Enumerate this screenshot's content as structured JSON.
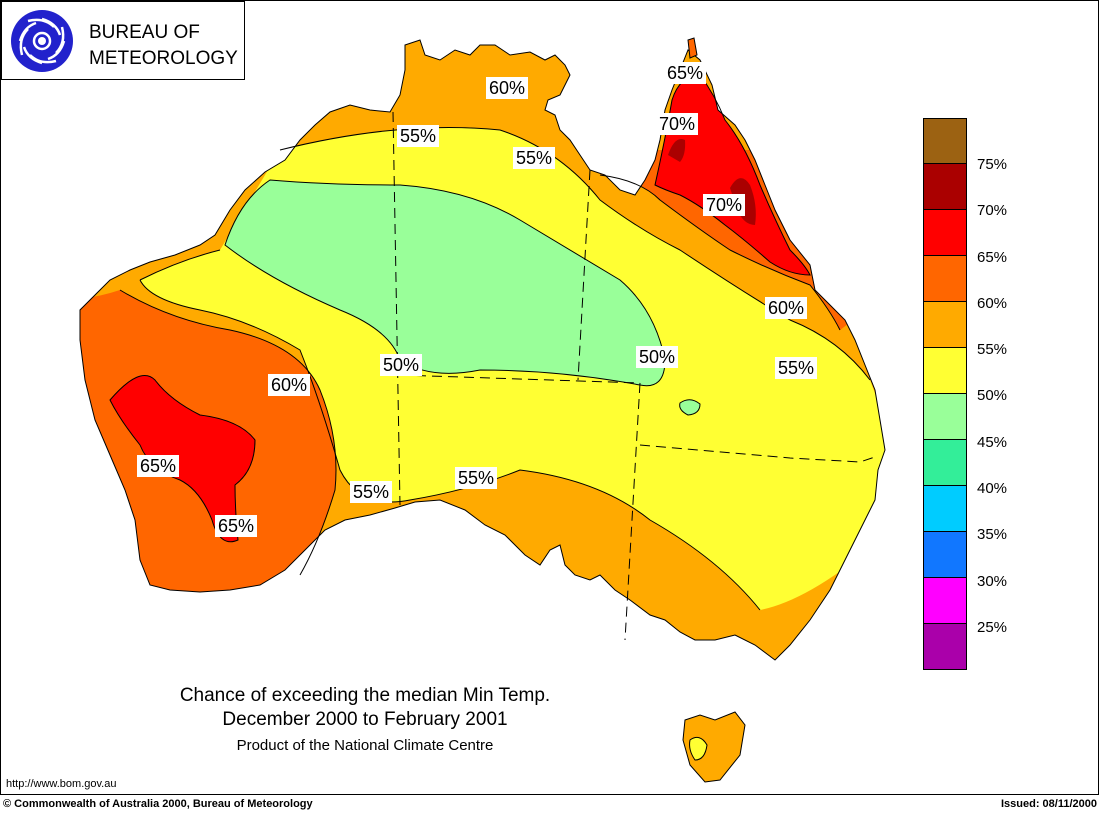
{
  "header": {
    "org_line1": "BUREAU OF",
    "org_line2": "METEOROLOGY"
  },
  "map": {
    "region": "Australia",
    "contour_labels": [
      {
        "text": "60%"
      },
      {
        "text": "65%"
      },
      {
        "text": "70%"
      },
      {
        "text": "55%"
      },
      {
        "text": "55%"
      },
      {
        "text": "70%"
      },
      {
        "text": "60%"
      },
      {
        "text": "50%"
      },
      {
        "text": "50%"
      },
      {
        "text": "55%"
      },
      {
        "text": "60%"
      },
      {
        "text": "65%"
      },
      {
        "text": "55%"
      },
      {
        "text": "55%"
      },
      {
        "text": "65%"
      }
    ],
    "band_colors": {
      "p45_50": "#99ff99",
      "p50_55": "#ffff33",
      "p55_60": "#ffaa00",
      "p60_65": "#ff6600",
      "p65_70": "#ff0000",
      "p70_75": "#aa0000"
    }
  },
  "legend": {
    "colors": [
      "#9c6212",
      "#aa0000",
      "#ff0000",
      "#ff6600",
      "#ffaa00",
      "#ffff33",
      "#99ff99",
      "#33ee99",
      "#00ccff",
      "#1177ff",
      "#ff00ff",
      "#aa00aa"
    ],
    "labels": [
      "75%",
      "70%",
      "65%",
      "60%",
      "55%",
      "50%",
      "45%",
      "40%",
      "35%",
      "30%",
      "25%"
    ]
  },
  "titles": {
    "line1": "Chance of exceeding the median Min Temp.",
    "line2": "December 2000 to February 2001",
    "line3": "Product of the National Climate Centre"
  },
  "footer": {
    "url": "http://www.bom.gov.au",
    "copyright": "© Commonwealth of Australia 2000, Bureau of Meteorology",
    "issued": "Issued: 08/11/2000"
  }
}
